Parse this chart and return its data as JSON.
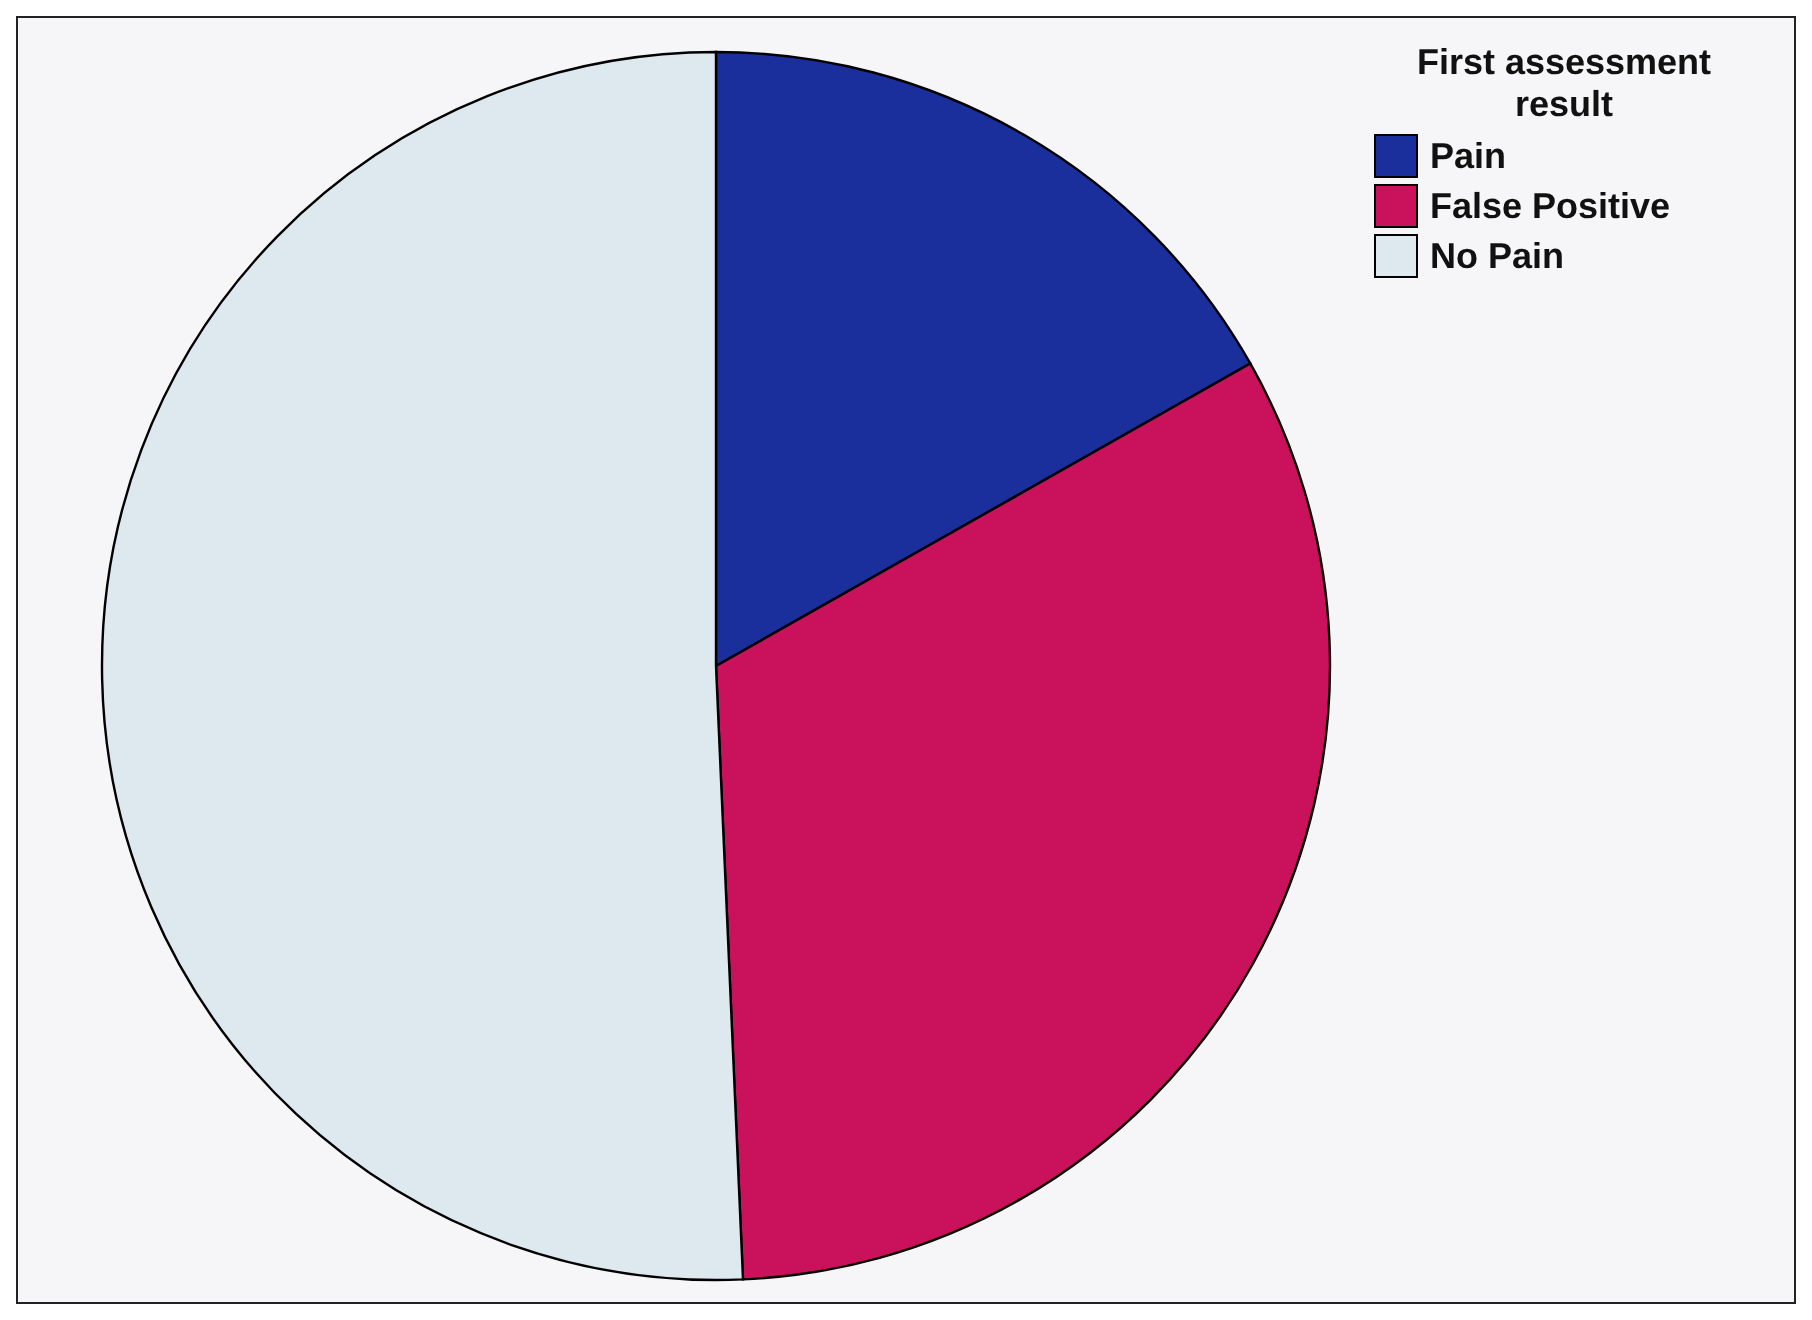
{
  "chart_data": {
    "type": "pie",
    "legend_title": "First assessment result",
    "categories": [
      "Pain",
      "False Positive",
      "No Pain"
    ],
    "values": [
      16.8,
      32.5,
      50.7
    ],
    "colors": [
      "#1b2f9c",
      "#c9115c",
      "#dde8ef"
    ],
    "legend": "top right"
  }
}
